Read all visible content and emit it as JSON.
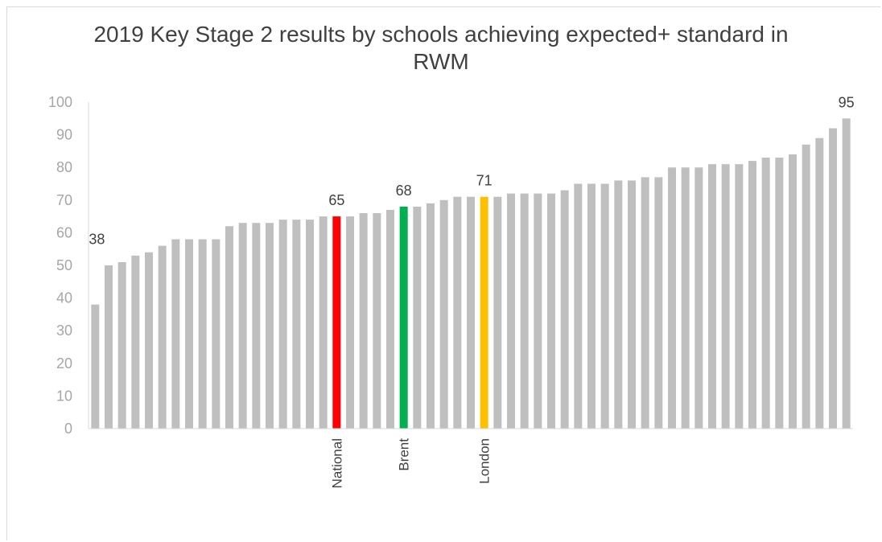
{
  "chart_data": {
    "type": "bar",
    "title_lines": [
      "2019 Key Stage 2 results by schools achieving expected+ standard in",
      "RWM"
    ],
    "ylim": [
      0,
      100
    ],
    "yticks": [
      "0",
      "10",
      "20",
      "30",
      "40",
      "50",
      "60",
      "70",
      "80",
      "90",
      "100"
    ],
    "grid": false,
    "values": [
      38,
      50,
      51,
      53,
      54,
      56,
      58,
      58,
      58,
      58,
      62,
      63,
      63,
      63,
      64,
      64,
      64,
      65,
      65,
      65,
      66,
      66,
      67,
      68,
      68,
      69,
      70,
      71,
      71,
      71,
      71,
      72,
      72,
      72,
      72,
      73,
      75,
      75,
      75,
      76,
      76,
      77,
      77,
      80,
      80,
      80,
      81,
      81,
      81,
      82,
      83,
      83,
      84,
      87,
      89,
      92,
      95
    ],
    "highlight": [
      {
        "index": 18,
        "label": "National",
        "value_label": "65",
        "color": "#ff0000"
      },
      {
        "index": 23,
        "label": "Brent",
        "value_label": "68",
        "color": "#00b050"
      },
      {
        "index": 29,
        "label": "London",
        "value_label": "71",
        "color": "#ffc000"
      }
    ],
    "end_labels": [
      {
        "index": 0,
        "text": "38"
      },
      {
        "index": 56,
        "text": "95"
      }
    ],
    "bar_color": "#bfbfbf",
    "axis_color": "#d9d9d9"
  }
}
